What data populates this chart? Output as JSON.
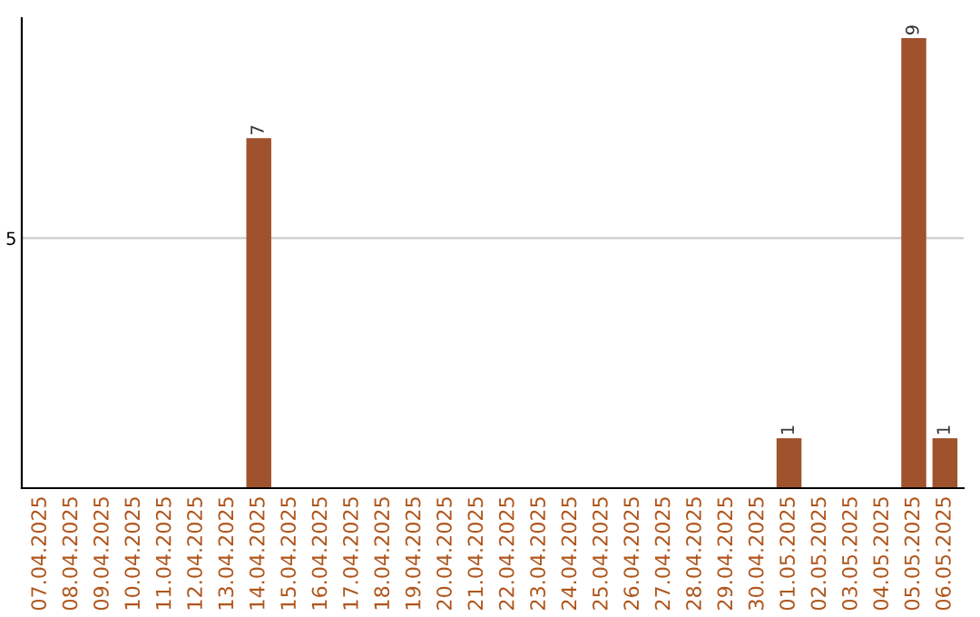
{
  "chart_data": {
    "type": "bar",
    "categories": [
      "07.04.2025",
      "08.04.2025",
      "09.04.2025",
      "10.04.2025",
      "11.04.2025",
      "12.04.2025",
      "13.04.2025",
      "14.04.2025",
      "15.04.2025",
      "16.04.2025",
      "17.04.2025",
      "18.04.2025",
      "19.04.2025",
      "20.04.2025",
      "21.04.2025",
      "22.04.2025",
      "23.04.2025",
      "24.04.2025",
      "25.04.2025",
      "26.04.2025",
      "27.04.2025",
      "28.04.2025",
      "29.04.2025",
      "30.04.2025",
      "01.05.2025",
      "02.05.2025",
      "03.05.2025",
      "04.05.2025",
      "05.05.2025",
      "06.05.2025"
    ],
    "values": [
      0,
      0,
      0,
      0,
      0,
      0,
      0,
      7,
      0,
      0,
      0,
      0,
      0,
      0,
      0,
      0,
      0,
      0,
      0,
      0,
      0,
      0,
      0,
      0,
      1,
      0,
      0,
      0,
      9,
      1
    ],
    "value_labels": [
      null,
      null,
      null,
      null,
      null,
      null,
      null,
      "7",
      null,
      null,
      null,
      null,
      null,
      null,
      null,
      null,
      null,
      null,
      null,
      null,
      null,
      null,
      null,
      null,
      "1",
      null,
      null,
      null,
      "9",
      "1"
    ],
    "color": "#a0522d",
    "ylim": [
      0,
      9.4
    ],
    "yticks": [
      5
    ],
    "grid": "y"
  }
}
